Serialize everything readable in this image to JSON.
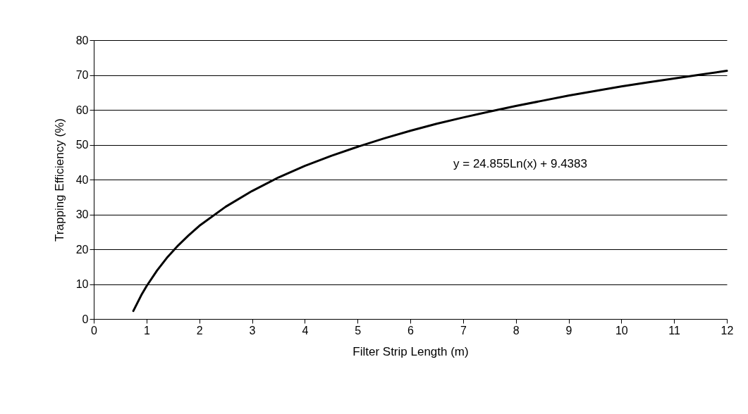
{
  "chart_data": {
    "type": "line",
    "xlabel": "Filter Strip Length (m)",
    "ylabel": "Trapping Efficiency (%)",
    "x": [
      0.75,
      0.9,
      1,
      1.2,
      1.4,
      1.6,
      1.8,
      2,
      2.5,
      3,
      3.5,
      4,
      4.5,
      5,
      5.5,
      6,
      6.5,
      7,
      7.5,
      8,
      8.5,
      9,
      9.5,
      10,
      10.5,
      11,
      11.5,
      12
    ],
    "series": [
      {
        "color": "#000000",
        "values": [
          2.3,
          6.8,
          9.4,
          13.9,
          17.8,
          21.1,
          24,
          26.7,
          32.2,
          36.7,
          40.6,
          43.9,
          46.8,
          49.4,
          51.8,
          54,
          56,
          57.8,
          59.5,
          61.1,
          62.6,
          64.1,
          65.4,
          66.7,
          67.9,
          69,
          70.1,
          71.2
        ]
      }
    ],
    "xlim": [
      0,
      12
    ],
    "xticks": [
      0,
      1,
      2,
      3,
      4,
      5,
      6,
      7,
      8,
      9,
      10,
      11,
      12
    ],
    "ylim": [
      0,
      80
    ],
    "yticks": [
      0,
      10,
      20,
      30,
      40,
      50,
      60,
      70,
      80
    ],
    "grid": "y",
    "marker": "none",
    "line_style": "solid",
    "annotations": [
      "y = 24.855Ln(x) + 9.4383"
    ]
  }
}
